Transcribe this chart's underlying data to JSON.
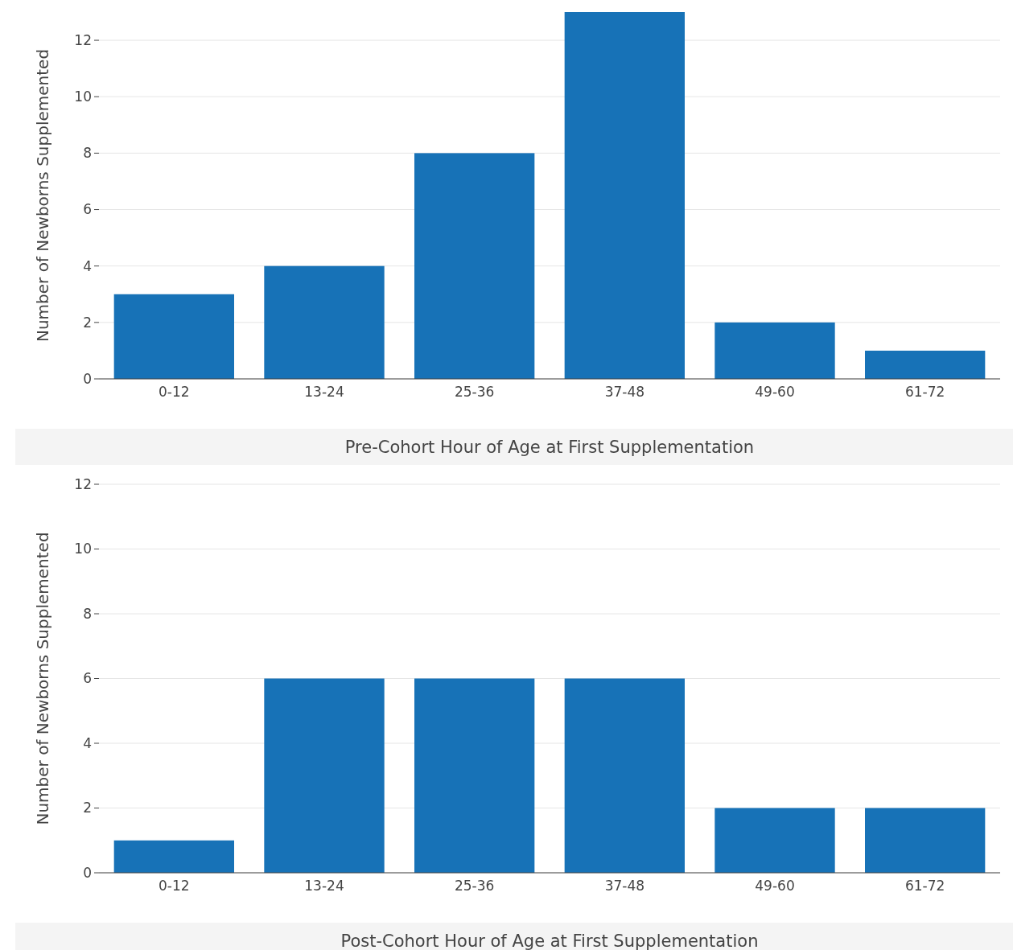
{
  "chart_data": [
    {
      "type": "bar",
      "xlabel": "Pre-Cohort Hour of Age at First Supplementation",
      "ylabel": "Number of Newborns Supplemented",
      "categories": [
        "0-12",
        "13-24",
        "25-36",
        "37-48",
        "49-60",
        "61-72"
      ],
      "values": [
        3,
        4,
        8,
        13,
        2,
        1
      ],
      "color": "#1772b7",
      "ylim": [
        0,
        13
      ],
      "yticks": [
        0,
        2,
        4,
        6,
        8,
        10,
        12
      ],
      "grid": "y"
    },
    {
      "type": "bar",
      "xlabel": "Post-Cohort Hour of Age at First Supplementation",
      "ylabel": "Number of Newborns Supplemented",
      "categories": [
        "0-12",
        "13-24",
        "25-36",
        "37-48",
        "49-60",
        "61-72"
      ],
      "values": [
        1,
        6,
        6,
        6,
        2,
        2
      ],
      "color": "#1772b7",
      "ylim": [
        0,
        12
      ],
      "yticks": [
        0,
        2,
        4,
        6,
        8,
        10,
        12
      ],
      "grid": "y"
    }
  ]
}
